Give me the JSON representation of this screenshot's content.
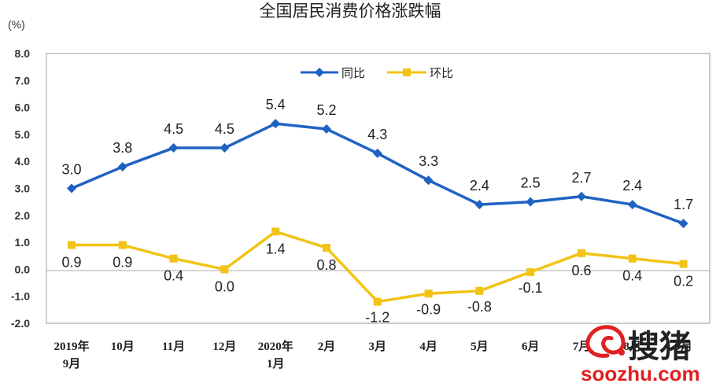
{
  "chart_data": {
    "type": "line",
    "title": "全国居民消费价格涨跌幅",
    "unit_label": "(%)",
    "ylim": [
      -2.0,
      8.0
    ],
    "yticks": [
      "8.0",
      "7.0",
      "6.0",
      "5.0",
      "4.0",
      "3.0",
      "2.0",
      "1.0",
      "0.0",
      "-1.0",
      "-2.0"
    ],
    "categories": [
      [
        "2019年",
        "9月"
      ],
      [
        "10月"
      ],
      [
        "11月"
      ],
      [
        "12月"
      ],
      [
        "2020年",
        "1月"
      ],
      [
        "2月"
      ],
      [
        "3月"
      ],
      [
        "4月"
      ],
      [
        "5月"
      ],
      [
        "6月"
      ],
      [
        "7月"
      ],
      [
        "8月"
      ],
      [
        "9月"
      ]
    ],
    "legend_position": "top-center",
    "grid": false,
    "series": [
      {
        "name": "同比",
        "color": "#1f62c4",
        "marker": "diamond",
        "values": [
          3.0,
          3.8,
          4.5,
          4.5,
          5.4,
          5.2,
          4.3,
          3.3,
          2.4,
          2.5,
          2.7,
          2.4,
          1.7
        ],
        "labels": [
          "3.0",
          "3.8",
          "4.5",
          "4.5",
          "5.4",
          "5.2",
          "4.3",
          "3.3",
          "2.4",
          "2.5",
          "2.7",
          "2.4",
          "1.7"
        ]
      },
      {
        "name": "环比",
        "color": "#f2c314",
        "marker": "square",
        "values": [
          0.9,
          0.9,
          0.4,
          0.0,
          1.4,
          0.8,
          -1.2,
          -0.9,
          -0.8,
          -0.1,
          0.6,
          0.4,
          0.2
        ],
        "labels": [
          "0.9",
          "0.9",
          "0.4",
          "0.0",
          "1.4",
          "0.8",
          "-1.2",
          "-0.9",
          "-0.8",
          "-0.1",
          "0.6",
          "0.4",
          "0.2"
        ]
      }
    ]
  },
  "watermark": {
    "brand_cn": "搜猪",
    "url": "soozhu.com",
    "logo_icon": "pig-swirl-icon",
    "logo_color": "#e02020"
  }
}
